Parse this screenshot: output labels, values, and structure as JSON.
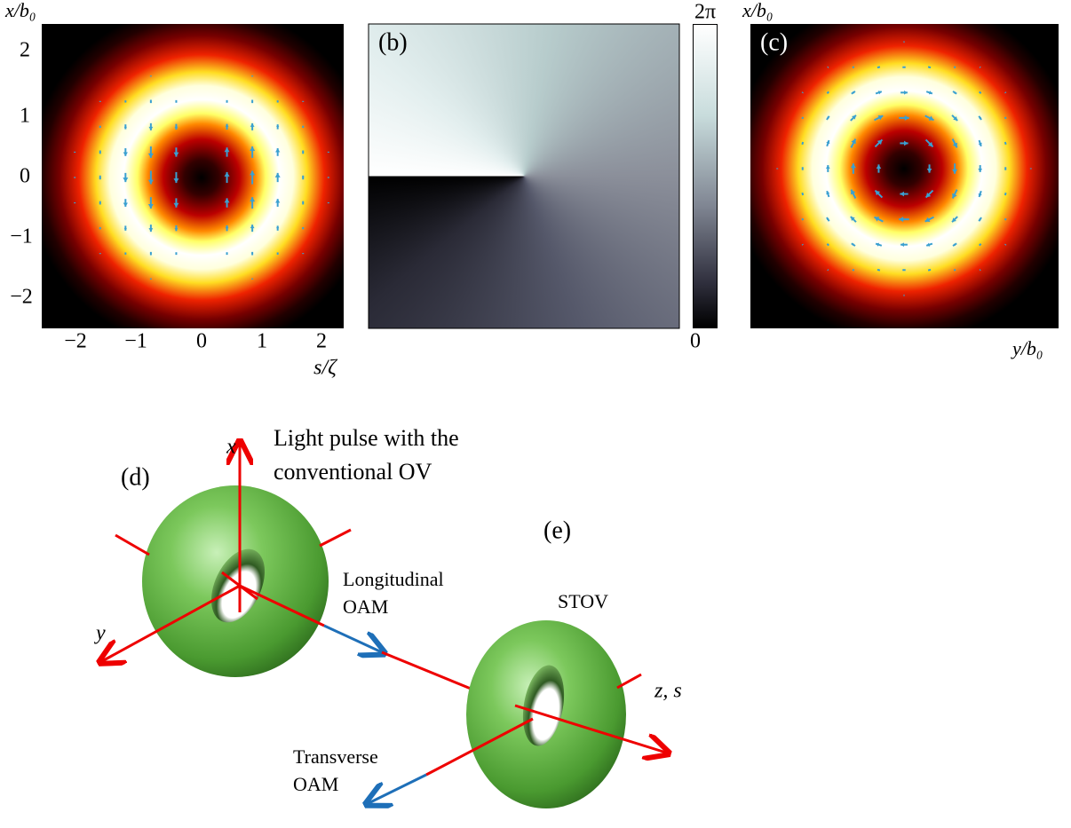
{
  "panel_a": {
    "y_axis_label": "x/b₀",
    "x_axis_label": "s/ζ",
    "yticks": [
      "2",
      "1",
      "0",
      "−1",
      "−2"
    ],
    "xticks": [
      "−2",
      "−1",
      "0",
      "1",
      "2"
    ]
  },
  "panel_b": {
    "label": "(b)",
    "colorbar_max": "2π",
    "colorbar_min": "0"
  },
  "panel_c": {
    "label": "(c)",
    "y_axis_label": "x/b₀",
    "x_axis_label": "y/b₀"
  },
  "panel_d": {
    "label": "(d)",
    "axis_x": "x",
    "axis_y": "y",
    "caption": [
      "Light pulse with the",
      "conventional OV"
    ],
    "oam_label": [
      "Longitudinal",
      "OAM"
    ]
  },
  "panel_e": {
    "label": "(e)",
    "caption": "STOV",
    "axis_z": "z, s",
    "oam_label": [
      "Transverse",
      "OAM"
    ]
  }
}
